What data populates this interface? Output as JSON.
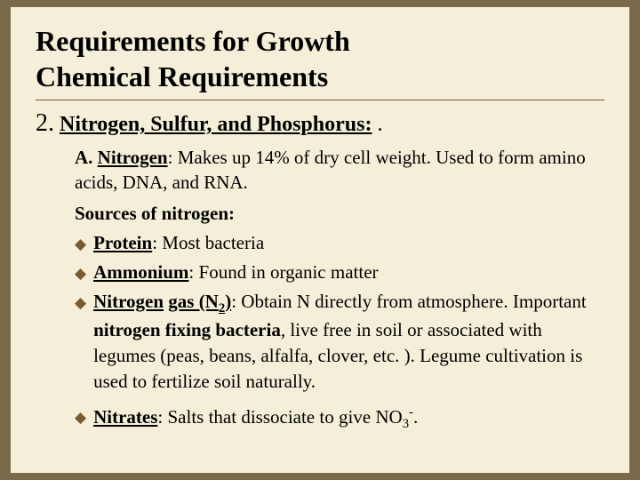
{
  "colors": {
    "page_background": "#7a6a4a",
    "slide_background": "#f5eed8",
    "text": "#000000",
    "accent": "#7a5a30"
  },
  "typography": {
    "family": "Georgia, 'Times New Roman', serif",
    "title_fontsize": 32,
    "section_num_fontsize": 28,
    "section_heading_fontsize": 24,
    "body_fontsize": 21,
    "diamond_fontsize": 17
  },
  "title": {
    "line1": "Requirements for Growth",
    "line2": "Chemical Requirements"
  },
  "section": {
    "number": "2.",
    "heading": "Nitrogen, Sulfur, and Phosphorus:",
    "trail": " ."
  },
  "subA": {
    "labelA": "A. ",
    "label": "Nitrogen",
    "colon": ":  ",
    "text": "Makes up 14% of dry cell weight.  Used to form amino acids, DNA, and RNA."
  },
  "sourcesLabel": "Sources of nitrogen:",
  "bullets": {
    "protein": {
      "label": "Protein",
      "colon": ":  ",
      "text": "Most bacteria"
    },
    "ammonium": {
      "label": "Ammonium",
      "colon": ": ",
      "text": "Found in organic matter"
    },
    "nitrogenGas": {
      "label_part1": "Nitrogen",
      "label_space": " ",
      "label_part2": "gas (N",
      "label_sub": "2",
      "label_part3": ")",
      "colon": ": ",
      "pre": "Obtain N directly from atmosphere. Important ",
      "bold": "nitrogen fixing bacteria",
      "post": ", live free in soil or associated with legumes (peas, beans, alfalfa, clover, etc. ). Legume cultivation is used to fertilize soil naturally."
    },
    "nitrates": {
      "label": "Nitrates",
      "colon": ": ",
      "pre": "Salts that dissociate to give NO",
      "sub": "3",
      "sup": "-",
      "post": "."
    }
  },
  "glyphs": {
    "diamond": "◆"
  }
}
